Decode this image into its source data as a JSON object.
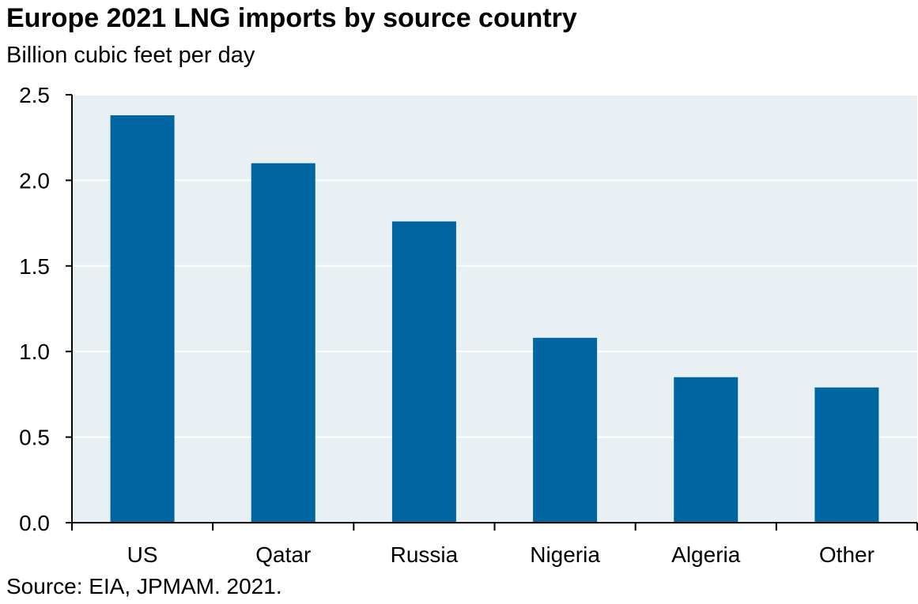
{
  "title": "Europe 2021 LNG imports by source country",
  "subtitle": "Billion cubic feet per day",
  "source": "Source: EIA, JPMAM. 2021.",
  "colors": {
    "bar": "#0066a1",
    "plot_background": "#e8f0f3",
    "gridline": "#ffffff",
    "axis": "#000000"
  },
  "chart_data": {
    "type": "bar",
    "title": "Europe 2021 LNG imports by source country",
    "subtitle": "Billion cubic feet per day",
    "xlabel": "",
    "ylabel": "",
    "categories": [
      "US",
      "Qatar",
      "Russia",
      "Nigeria",
      "Algeria",
      "Other"
    ],
    "values": [
      2.38,
      2.1,
      1.76,
      1.08,
      0.85,
      0.79
    ],
    "ylim": [
      0,
      2.5
    ],
    "yticks": [
      "0.0",
      "0.5",
      "1.0",
      "1.5",
      "2.0",
      "2.5"
    ],
    "grid": true,
    "legend": "none"
  }
}
